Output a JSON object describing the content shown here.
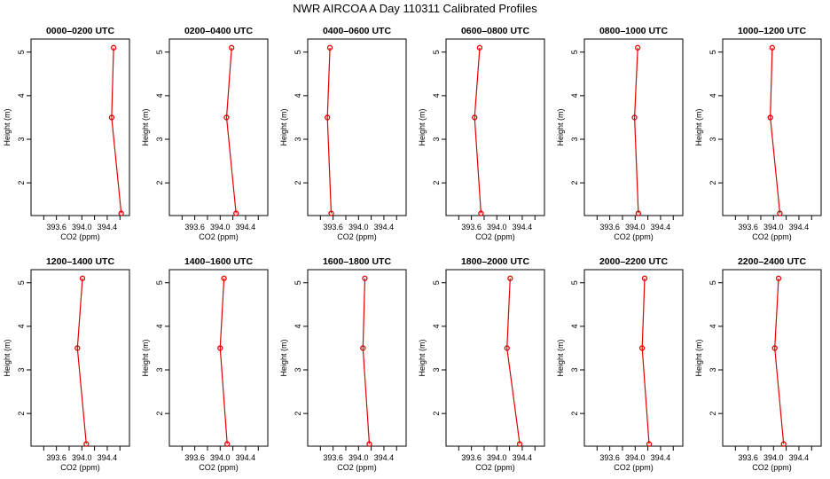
{
  "title": "NWR AIRCOA A  Day 110311  Calibrated Profiles",
  "chart_data": {
    "type": "line",
    "title": "NWR AIRCOA A  Day 110311  Calibrated Profiles",
    "xlabel": "CO2 (ppm)",
    "ylabel": "Height (m)",
    "xlim": [
      393.2,
      394.75
    ],
    "ylim": [
      1.25,
      5.3
    ],
    "xticks": [
      "393.6",
      "394.0",
      "394.4"
    ],
    "yticks": [
      "2",
      "3",
      "4",
      "5"
    ],
    "grid": false,
    "heights": [
      5.1,
      3.5,
      1.3
    ],
    "panels": [
      {
        "title": "0000–0200 UTC",
        "co2": [
          394.5,
          394.47,
          394.62
        ]
      },
      {
        "title": "0200–0400 UTC",
        "co2": [
          394.18,
          394.1,
          394.25
        ]
      },
      {
        "title": "0400–0600 UTC",
        "co2": [
          393.55,
          393.51,
          393.57
        ]
      },
      {
        "title": "0600–0800 UTC",
        "co2": [
          393.73,
          393.65,
          393.75
        ]
      },
      {
        "title": "0800–1000 UTC",
        "co2": [
          394.04,
          393.99,
          394.05
        ]
      },
      {
        "title": "1000–1200 UTC",
        "co2": [
          393.98,
          393.95,
          394.1
        ]
      },
      {
        "title": "1200–1400 UTC",
        "co2": [
          394.01,
          393.93,
          394.07
        ]
      },
      {
        "title": "1400–1600 UTC",
        "co2": [
          394.06,
          394.0,
          394.11
        ]
      },
      {
        "title": "1600–1800 UTC",
        "co2": [
          394.1,
          394.07,
          394.17
        ]
      },
      {
        "title": "1800–2000 UTC",
        "co2": [
          394.21,
          394.16,
          394.36
        ]
      },
      {
        "title": "2000–2200 UTC",
        "co2": [
          394.15,
          394.11,
          394.22
        ]
      },
      {
        "title": "2200–2400 UTC",
        "co2": [
          394.08,
          394.02,
          394.16
        ]
      }
    ]
  }
}
